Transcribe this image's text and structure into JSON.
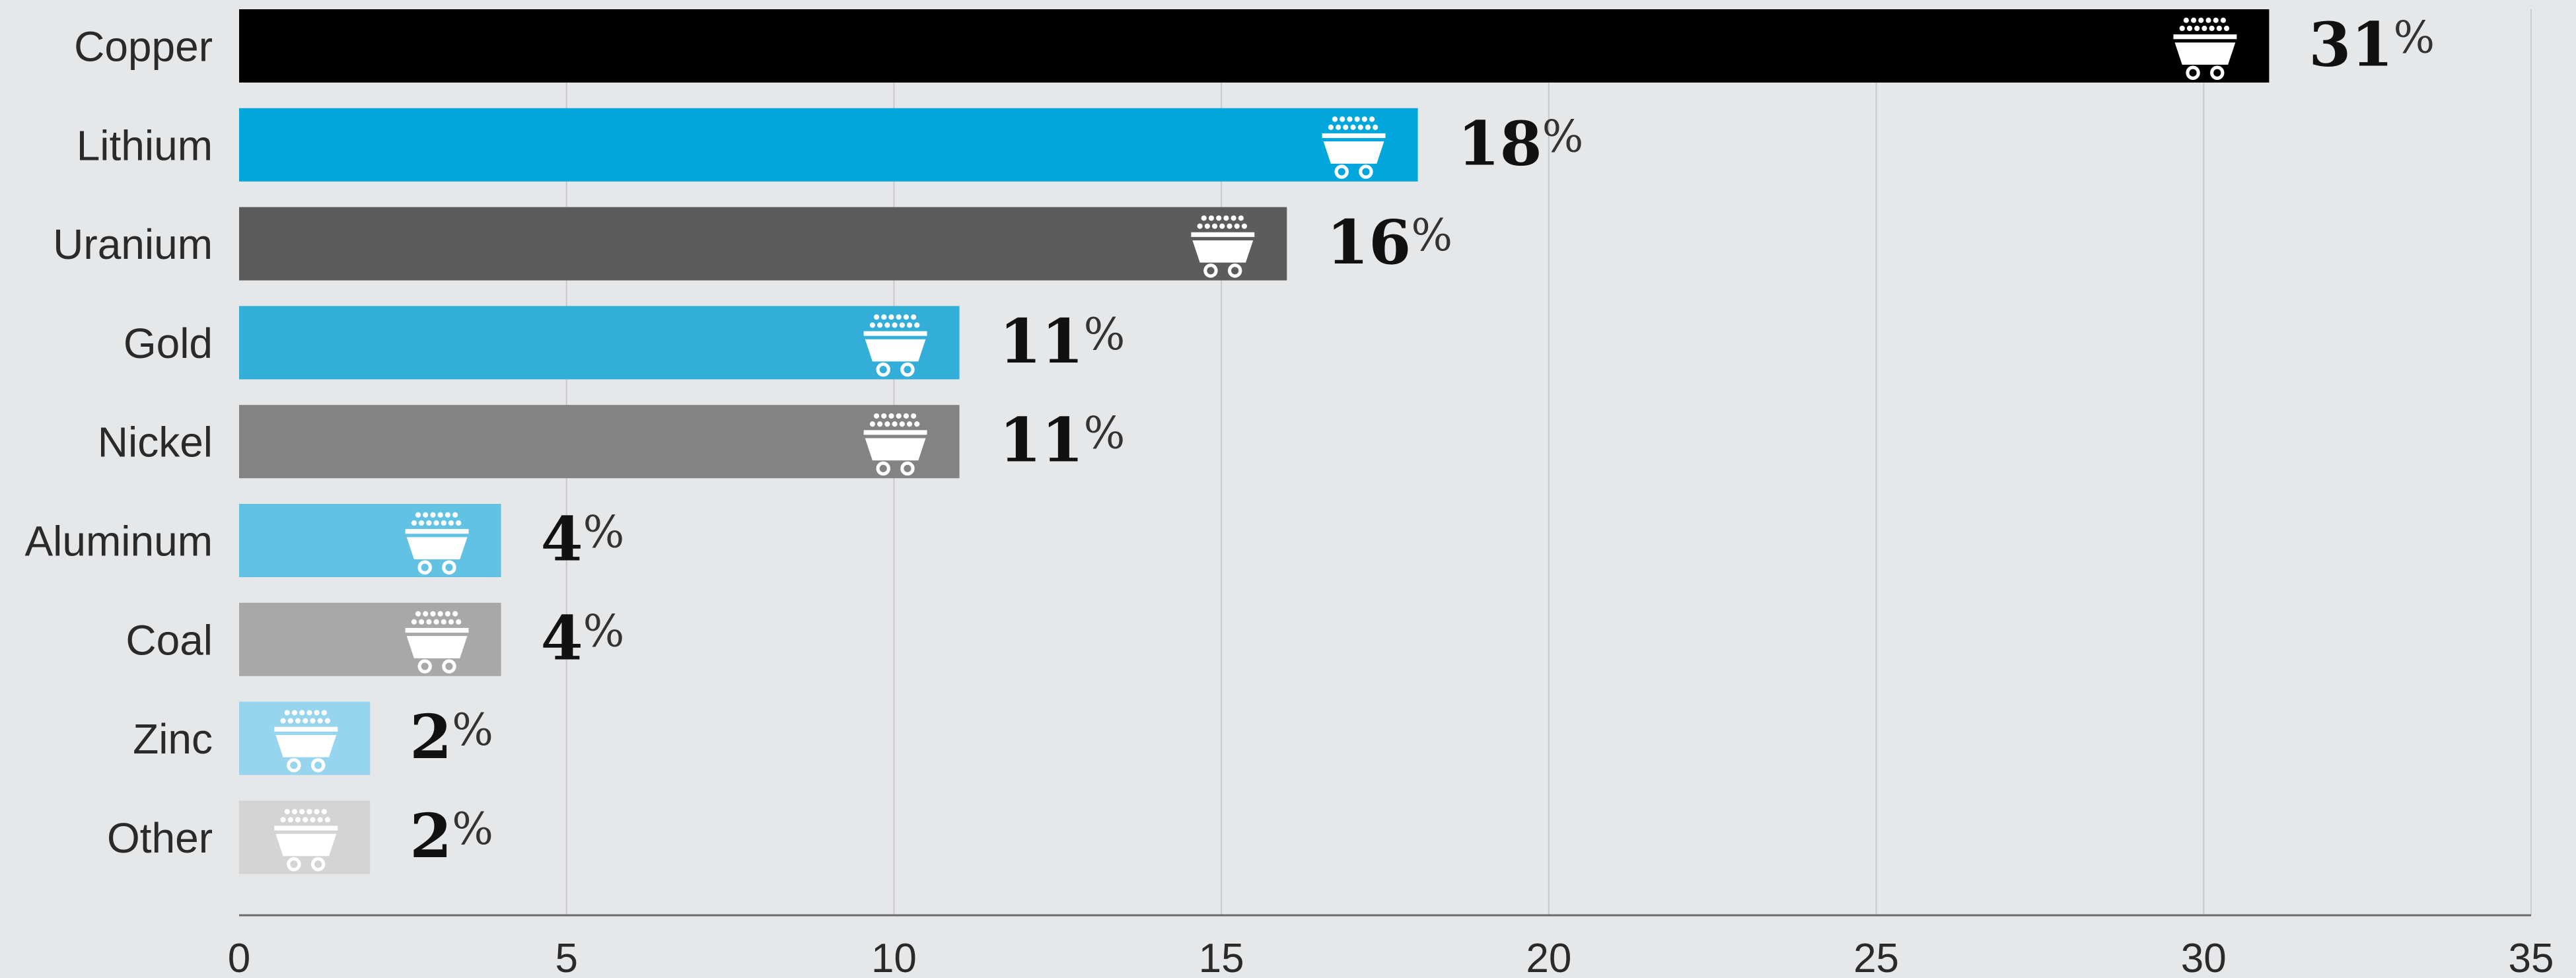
{
  "chart_data": {
    "type": "bar",
    "orientation": "horizontal",
    "categories": [
      "Copper",
      "Lithium",
      "Uranium",
      "Gold",
      "Nickel",
      "Aluminum",
      "Coal",
      "Zinc",
      "Other"
    ],
    "values": [
      31,
      18,
      16,
      11,
      11,
      4,
      4,
      2,
      2
    ],
    "value_labels": [
      "31",
      "18",
      "16",
      "11",
      "11",
      "4",
      "4",
      "2",
      "2"
    ],
    "value_suffix": "%",
    "colors": [
      "#000000",
      "#00a6dc",
      "#5c5c5c",
      "#33aed8",
      "#838383",
      "#62c2e3",
      "#a8a8a8",
      "#97d5ee",
      "#d4d4d4"
    ],
    "bar_icon": "mine-cart-icon",
    "xlim": [
      0,
      35
    ],
    "x_ticks": [
      "0",
      "5",
      "10",
      "15",
      "20",
      "25",
      "30",
      "35"
    ],
    "x_tick_values": [
      0,
      5,
      10,
      15,
      20,
      25,
      30,
      35
    ],
    "grid": "vertical",
    "title": "",
    "xlabel": "",
    "ylabel": ""
  }
}
